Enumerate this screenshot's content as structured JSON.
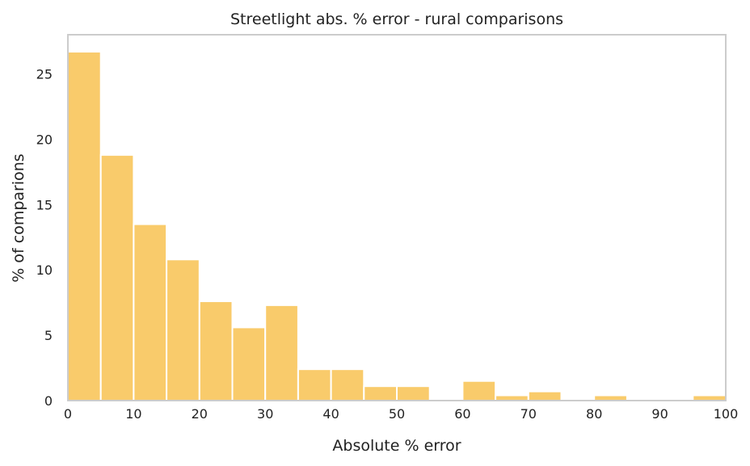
{
  "chart_data": {
    "type": "bar",
    "title": "Streetlight abs. % error - rural comparisons",
    "xlabel": "Absolute % error",
    "ylabel": "% of comparions",
    "xlim": [
      0,
      100
    ],
    "ylim": [
      0,
      28
    ],
    "xticks": [
      0,
      10,
      20,
      30,
      40,
      50,
      60,
      70,
      80,
      90,
      100
    ],
    "yticks": [
      0,
      5,
      10,
      15,
      20,
      25
    ],
    "bin_width": 5,
    "bins": [
      {
        "x0": 0,
        "x1": 5,
        "value": 26.7
      },
      {
        "x0": 5,
        "x1": 10,
        "value": 18.8
      },
      {
        "x0": 10,
        "x1": 15,
        "value": 13.5
      },
      {
        "x0": 15,
        "x1": 20,
        "value": 10.8
      },
      {
        "x0": 20,
        "x1": 25,
        "value": 7.6
      },
      {
        "x0": 25,
        "x1": 30,
        "value": 5.6
      },
      {
        "x0": 30,
        "x1": 35,
        "value": 7.3
      },
      {
        "x0": 35,
        "x1": 40,
        "value": 2.4
      },
      {
        "x0": 40,
        "x1": 45,
        "value": 2.4
      },
      {
        "x0": 45,
        "x1": 50,
        "value": 1.1
      },
      {
        "x0": 50,
        "x1": 55,
        "value": 1.1
      },
      {
        "x0": 55,
        "x1": 60,
        "value": 0
      },
      {
        "x0": 60,
        "x1": 65,
        "value": 1.5
      },
      {
        "x0": 65,
        "x1": 70,
        "value": 0.4
      },
      {
        "x0": 70,
        "x1": 75,
        "value": 0.7
      },
      {
        "x0": 75,
        "x1": 80,
        "value": 0
      },
      {
        "x0": 80,
        "x1": 85,
        "value": 0.4
      },
      {
        "x0": 85,
        "x1": 90,
        "value": 0
      },
      {
        "x0": 90,
        "x1": 95,
        "value": 0
      },
      {
        "x0": 95,
        "x1": 100,
        "value": 0.4
      }
    ],
    "bar_color": "#f9cb6b",
    "grid": false,
    "legend": "none"
  }
}
